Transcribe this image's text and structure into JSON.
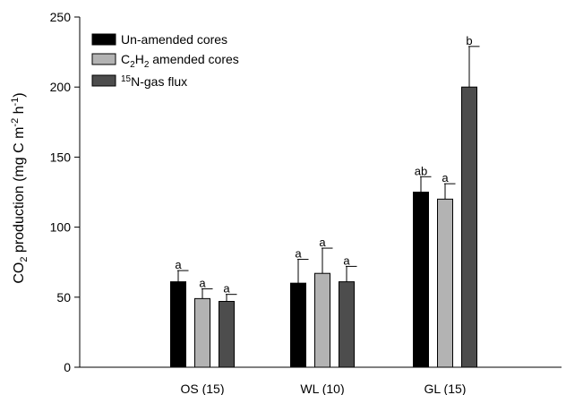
{
  "chart_data": {
    "type": "bar",
    "categories": [
      "OS (15)",
      "WL (10)",
      "GL (15)"
    ],
    "ylabel": {
      "base": "CO",
      "sub": "2",
      "rest": " production (mg C m",
      "sup1": "-2",
      "mid": " h",
      "sup2": "-1",
      "end": ")"
    },
    "ylim": [
      0,
      250
    ],
    "yticks": [
      0,
      50,
      100,
      150,
      200,
      250
    ],
    "ytick_labels": [
      "0",
      "50",
      "100",
      "150",
      "200",
      "250"
    ],
    "legend_position": "top-left",
    "series": [
      {
        "name": "Un-amended cores",
        "legend": {
          "pre": "",
          "main": "Un-amended cores",
          "sub": "",
          "sup": ""
        },
        "color": "#000000",
        "values": [
          61,
          60,
          125
        ],
        "errors": [
          8,
          17,
          11
        ],
        "labels": [
          "a",
          "a",
          "ab"
        ]
      },
      {
        "name": "C2H2 amended cores",
        "legend": {
          "pre": "C",
          "sub1": "2",
          "mid": "H",
          "sub2": "2",
          "post": " amended cores"
        },
        "color": "#b3b3b3",
        "values": [
          49,
          67,
          120
        ],
        "errors": [
          7,
          18,
          11
        ],
        "labels": [
          "a",
          "a",
          "a"
        ]
      },
      {
        "name": "15N-gas flux",
        "legend": {
          "sup": "15",
          "main": "N-gas flux"
        },
        "color": "#4d4d4d",
        "values": [
          47,
          61,
          200
        ],
        "errors": [
          5,
          11,
          29
        ],
        "labels": [
          "a",
          "a",
          "b"
        ]
      }
    ]
  }
}
